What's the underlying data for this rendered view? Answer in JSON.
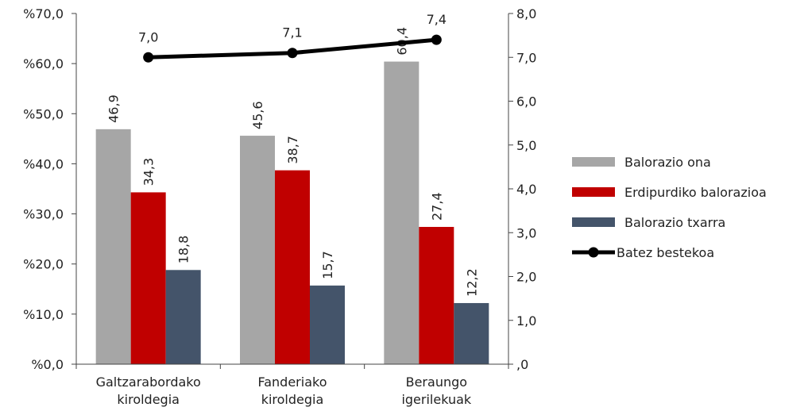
{
  "chart_data": {
    "type": "bar",
    "categories": [
      [
        "Galtzarabordako",
        "kiroldegia"
      ],
      [
        "Fanderiako",
        "kiroldegia"
      ],
      [
        "Beraungo",
        "igerilekuak"
      ]
    ],
    "series": [
      {
        "name": "Balorazio ona",
        "values": [
          46.9,
          45.6,
          60.4
        ],
        "labels": [
          "46,9",
          "45,6",
          "60,4"
        ],
        "color": "#a6a6a6"
      },
      {
        "name": "Erdipurdiko balorazioa",
        "values": [
          34.3,
          38.7,
          27.4
        ],
        "labels": [
          "34,3",
          "38,7",
          "27,4"
        ],
        "color": "#c00000"
      },
      {
        "name": "Balorazio txarra",
        "values": [
          18.8,
          15.7,
          12.2
        ],
        "labels": [
          "18,8",
          "15,7",
          "12,2"
        ],
        "color": "#44546a"
      }
    ],
    "line_series": {
      "name": "Batez bestekoa",
      "values": [
        7.0,
        7.1,
        7.4
      ],
      "labels": [
        "7,0",
        "7,1",
        "7,4"
      ],
      "color": "#000000",
      "axis": "right"
    },
    "y_left": {
      "ylim": [
        0,
        70
      ],
      "ticks": [
        0,
        10,
        20,
        30,
        40,
        50,
        60,
        70
      ],
      "tick_labels": [
        "%0,0",
        "%10,0",
        "%20,0",
        "%30,0",
        "%40,0",
        "%50,0",
        "%60,0",
        "%70,0"
      ]
    },
    "y_right": {
      "ylim": [
        0,
        8
      ],
      "ticks": [
        0,
        1,
        2,
        3,
        4,
        5,
        6,
        7,
        8
      ],
      "tick_labels": [
        ",0",
        "1,0",
        "2,0",
        "3,0",
        "4,0",
        "5,0",
        "6,0",
        "7,0",
        "8,0"
      ]
    },
    "legend_position": "right",
    "grid": false
  }
}
